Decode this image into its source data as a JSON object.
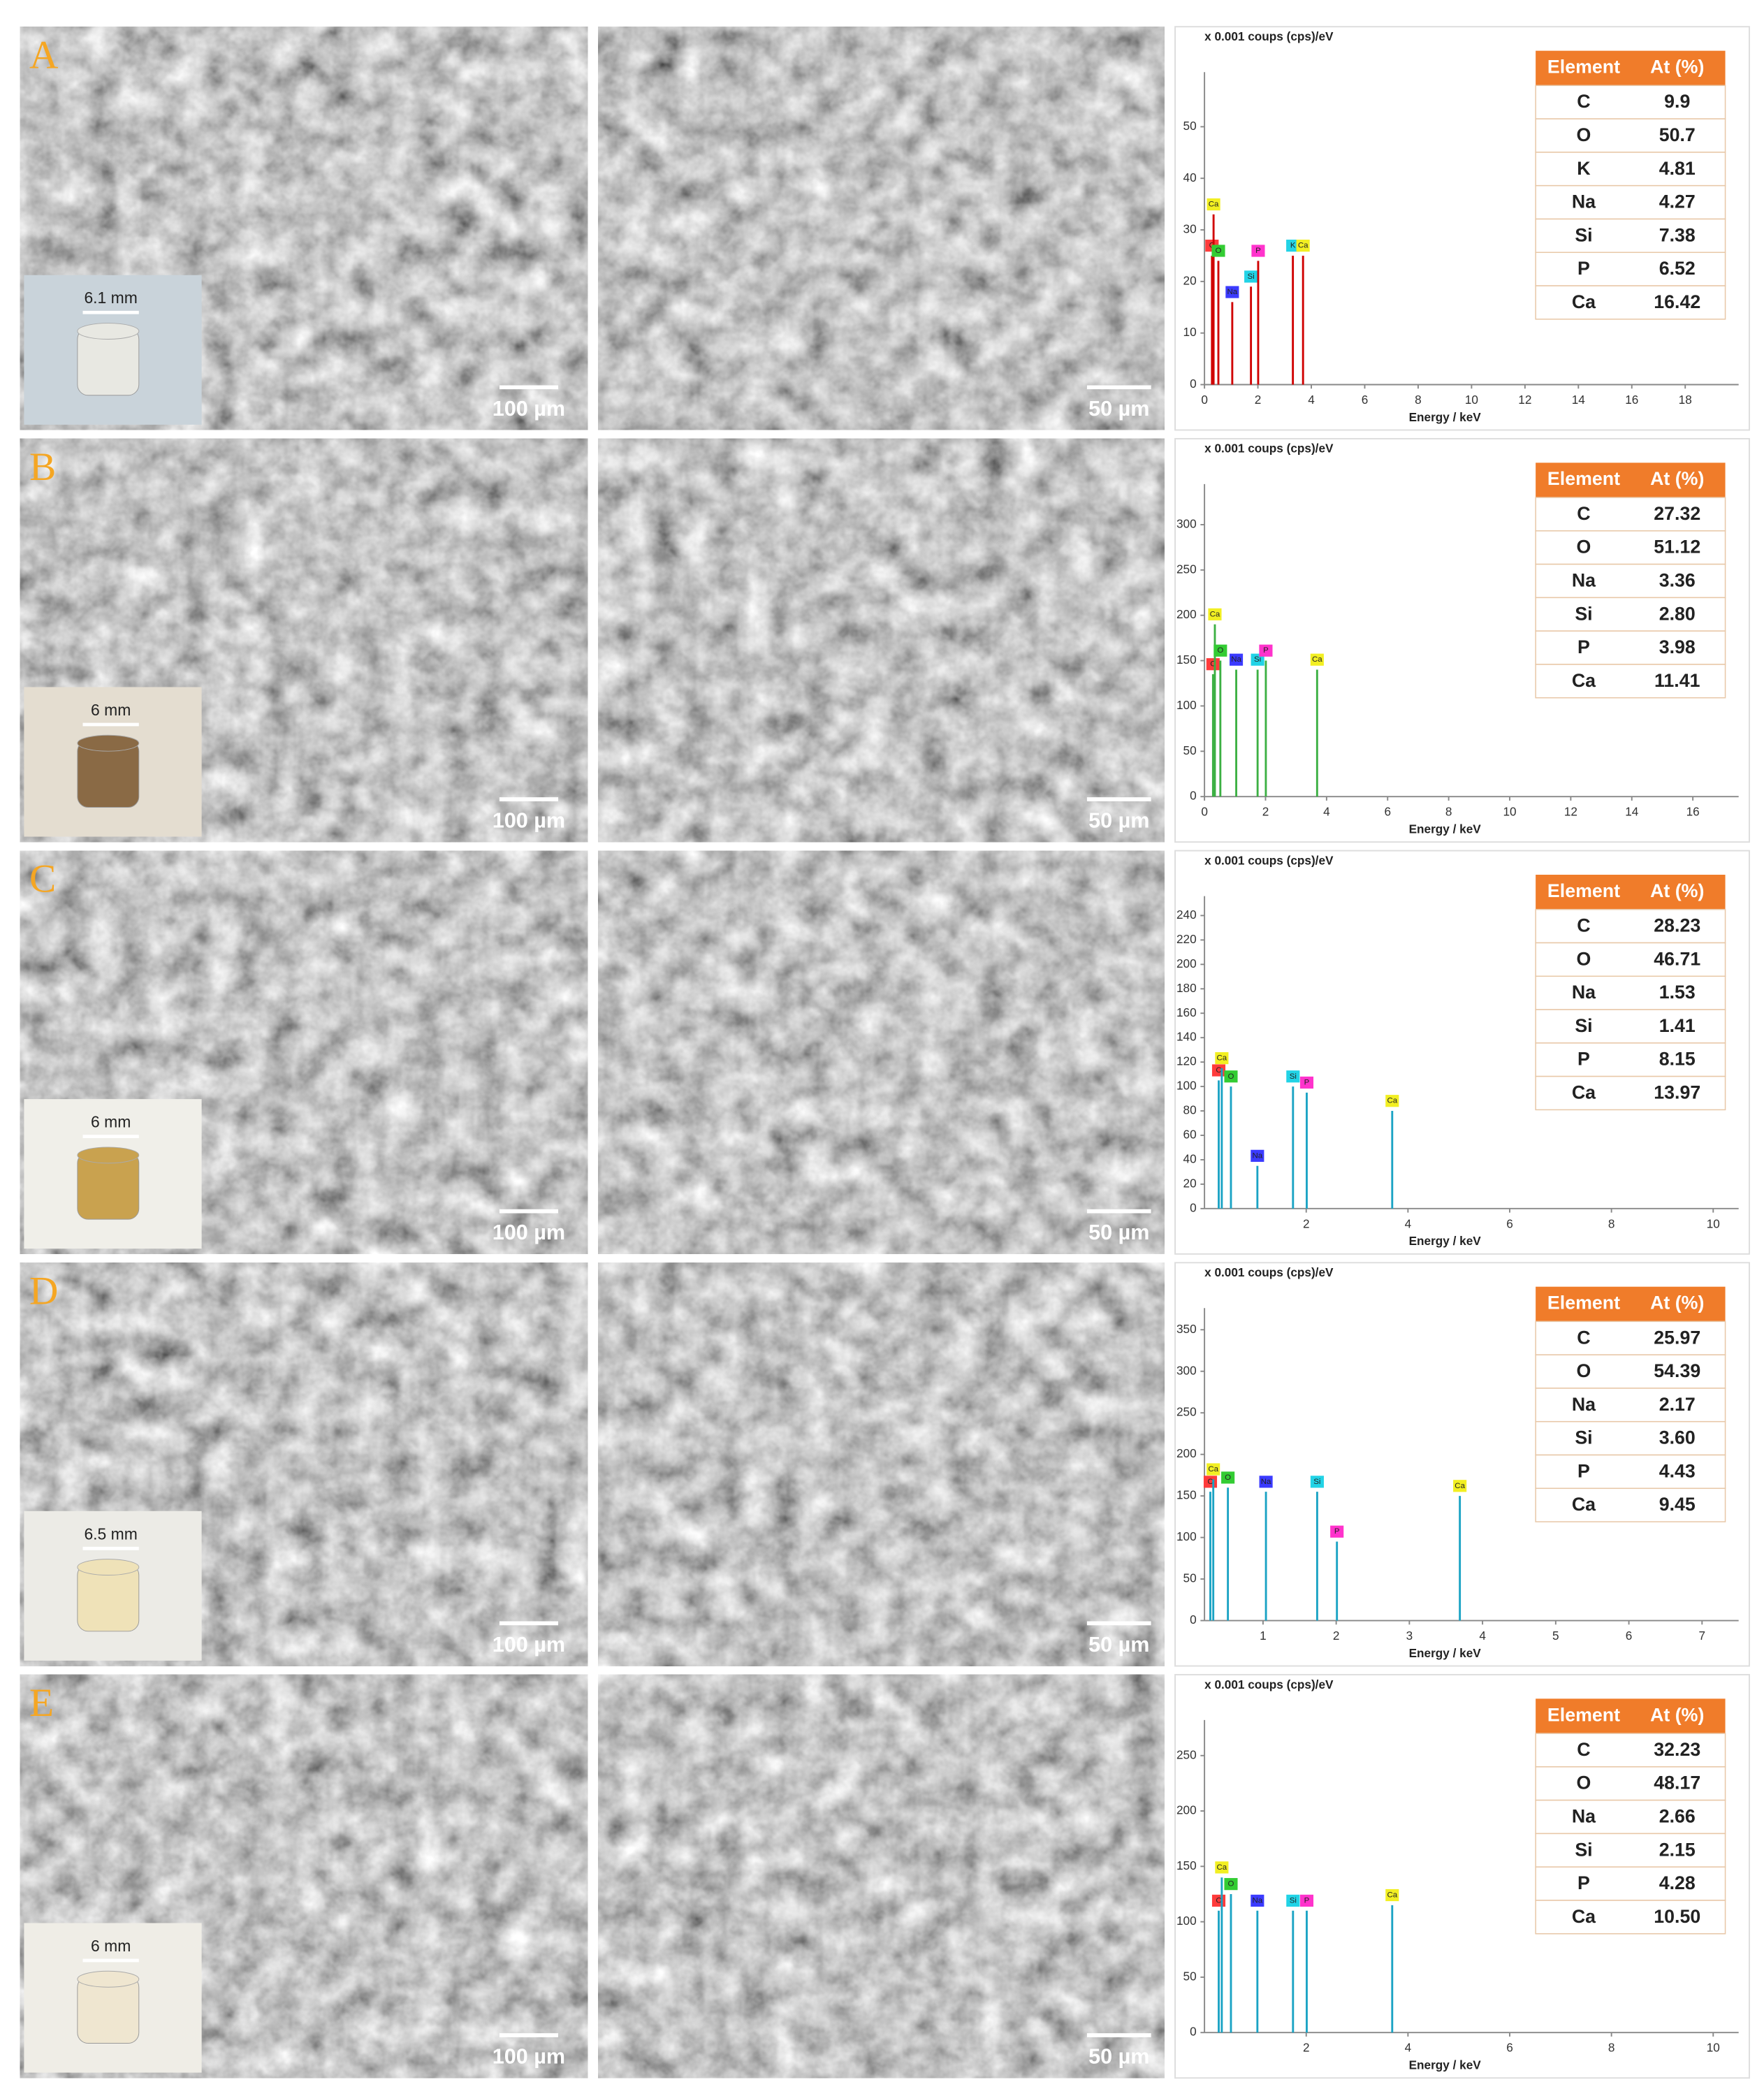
{
  "element_colors": {
    "C": "#ff3b3b",
    "O": "#33cc33",
    "Na": "#3b3bff",
    "Si": "#22d3e6",
    "P": "#ff33cc",
    "K": "#22d3e6",
    "Ca": "#f2ef22"
  },
  "panels": [
    {
      "letter": "A",
      "inset_scale": "6.1 mm",
      "scale_bar_left": "100 µm",
      "scale_bar_right": "50 µm",
      "table": {
        "header": [
          "Element",
          "At (%)"
        ],
        "rows": [
          [
            "C",
            "9.9"
          ],
          [
            "O",
            "50.7"
          ],
          [
            "K",
            "4.81"
          ],
          [
            "Na",
            "4.27"
          ],
          [
            "Si",
            "7.38"
          ],
          [
            "P",
            "6.52"
          ],
          [
            "Ca",
            "16.42"
          ]
        ]
      }
    },
    {
      "letter": "B",
      "inset_scale": "6 mm",
      "scale_bar_left": "100 µm",
      "scale_bar_right": "50 µm",
      "table": {
        "header": [
          "Element",
          "At (%)"
        ],
        "rows": [
          [
            "C",
            "27.32"
          ],
          [
            "O",
            "51.12"
          ],
          [
            "Na",
            "3.36"
          ],
          [
            "Si",
            "2.80"
          ],
          [
            "P",
            "3.98"
          ],
          [
            "Ca",
            "11.41"
          ]
        ]
      }
    },
    {
      "letter": "C",
      "inset_scale": "6 mm",
      "scale_bar_left": "100 µm",
      "scale_bar_right": "50 µm",
      "table": {
        "header": [
          "Element",
          "At (%)"
        ],
        "rows": [
          [
            "C",
            "28.23"
          ],
          [
            "O",
            "46.71"
          ],
          [
            "Na",
            "1.53"
          ],
          [
            "Si",
            "1.41"
          ],
          [
            "P",
            "8.15"
          ],
          [
            "Ca",
            "13.97"
          ]
        ]
      }
    },
    {
      "letter": "D",
      "inset_scale": "6.5 mm",
      "scale_bar_left": "100 µm",
      "scale_bar_right": "50 µm",
      "table": {
        "header": [
          "Element",
          "At (%)"
        ],
        "rows": [
          [
            "C",
            "25.97"
          ],
          [
            "O",
            "54.39"
          ],
          [
            "Na",
            "2.17"
          ],
          [
            "Si",
            "3.60"
          ],
          [
            "P",
            "4.43"
          ],
          [
            "Ca",
            "9.45"
          ]
        ]
      }
    },
    {
      "letter": "E",
      "inset_scale": "6 mm",
      "scale_bar_left": "100 µm",
      "scale_bar_right": "50 µm",
      "table": {
        "header": [
          "Element",
          "At (%)"
        ],
        "rows": [
          [
            "C",
            "32.23"
          ],
          [
            "O",
            "48.17"
          ],
          [
            "Na",
            "2.66"
          ],
          [
            "Si",
            "2.15"
          ],
          [
            "P",
            "4.28"
          ],
          [
            "Ca",
            "10.50"
          ]
        ]
      }
    }
  ],
  "chart_data": [
    {
      "type": "spectrum",
      "y_axis_label": "x 0.001 coups (cps)/eV",
      "x_label": "Energy / keV",
      "color": "#d00000",
      "xlim": [
        0,
        20
      ],
      "xticks": [
        0,
        2,
        4,
        6,
        8,
        10,
        12,
        14,
        16,
        18
      ],
      "ylim": [
        0,
        58
      ],
      "yticks": [
        0,
        10,
        20,
        30,
        40,
        50
      ],
      "x": [
        0.28,
        0.34,
        0.52,
        1.04,
        1.74,
        2.01,
        3.31,
        3.69
      ],
      "values": [
        25,
        33,
        24,
        16,
        19,
        24,
        25,
        25
      ],
      "peak_labels": [
        "C",
        "Ca",
        "O",
        "Na",
        "Si",
        "P",
        "K",
        "Ca"
      ]
    },
    {
      "type": "spectrum",
      "y_axis_label": "x 0.001 coups (cps)/eV",
      "x_label": "Energy / keV",
      "color": "#3cb043",
      "xlim": [
        0,
        17.5
      ],
      "xticks": [
        0,
        2,
        4,
        6,
        8,
        10,
        12,
        14,
        16
      ],
      "ylim": [
        0,
        330
      ],
      "yticks": [
        0,
        50,
        100,
        150,
        200,
        250,
        300
      ],
      "x": [
        0.28,
        0.34,
        0.52,
        1.04,
        1.74,
        2.01,
        3.69
      ],
      "values": [
        135,
        190,
        150,
        140,
        140,
        150,
        140
      ],
      "peak_labels": [
        "C",
        "Ca",
        "O",
        "Na",
        "Si",
        "P",
        "Ca"
      ]
    },
    {
      "type": "spectrum",
      "y_axis_label": "x 0.001 coups (cps)/eV",
      "x_label": "Energy / keV",
      "color": "#1aa3c4",
      "xlim": [
        0,
        10.5
      ],
      "xticks": [
        2,
        4,
        6,
        8,
        10
      ],
      "ylim": [
        0,
        245
      ],
      "yticks": [
        0,
        20,
        40,
        60,
        80,
        100,
        120,
        140,
        160,
        180,
        200,
        220,
        240
      ],
      "x": [
        0.28,
        0.34,
        0.52,
        1.04,
        1.74,
        2.01,
        3.69
      ],
      "values": [
        105,
        115,
        100,
        35,
        100,
        95,
        80
      ],
      "peak_labels": [
        "C",
        "Ca",
        "O",
        "Na",
        "Si",
        "P",
        "Ca"
      ]
    },
    {
      "type": "spectrum",
      "y_axis_label": "x 0.001 coups (cps)/eV",
      "x_label": "Energy / keV",
      "color": "#1aa3c4",
      "xlim": [
        0.2,
        7.5
      ],
      "xticks": [
        1,
        2,
        3,
        4,
        5,
        6,
        7
      ],
      "ylim": [
        0,
        360
      ],
      "yticks": [
        0,
        50,
        100,
        150,
        200,
        250,
        300,
        350
      ],
      "x": [
        0.28,
        0.32,
        0.52,
        1.04,
        1.74,
        2.01,
        3.69
      ],
      "values": [
        155,
        170,
        160,
        155,
        155,
        95,
        150
      ],
      "peak_labels": [
        "C",
        "Ca",
        "O",
        "Na",
        "Si",
        "P",
        "Ca"
      ]
    },
    {
      "type": "spectrum",
      "y_axis_label": "x 0.001 coups (cps)/eV",
      "x_label": "Energy / keV",
      "color": "#1aa3c4",
      "xlim": [
        0,
        10.5
      ],
      "xticks": [
        2,
        4,
        6,
        8,
        10
      ],
      "ylim": [
        0,
        270
      ],
      "yticks": [
        0,
        50,
        100,
        150,
        200,
        250
      ],
      "x": [
        0.28,
        0.34,
        0.52,
        1.04,
        1.74,
        2.01,
        3.69
      ],
      "values": [
        110,
        140,
        125,
        110,
        110,
        110,
        115
      ],
      "peak_labels": [
        "C",
        "Ca",
        "O",
        "Na",
        "Si",
        "P",
        "Ca"
      ]
    }
  ]
}
